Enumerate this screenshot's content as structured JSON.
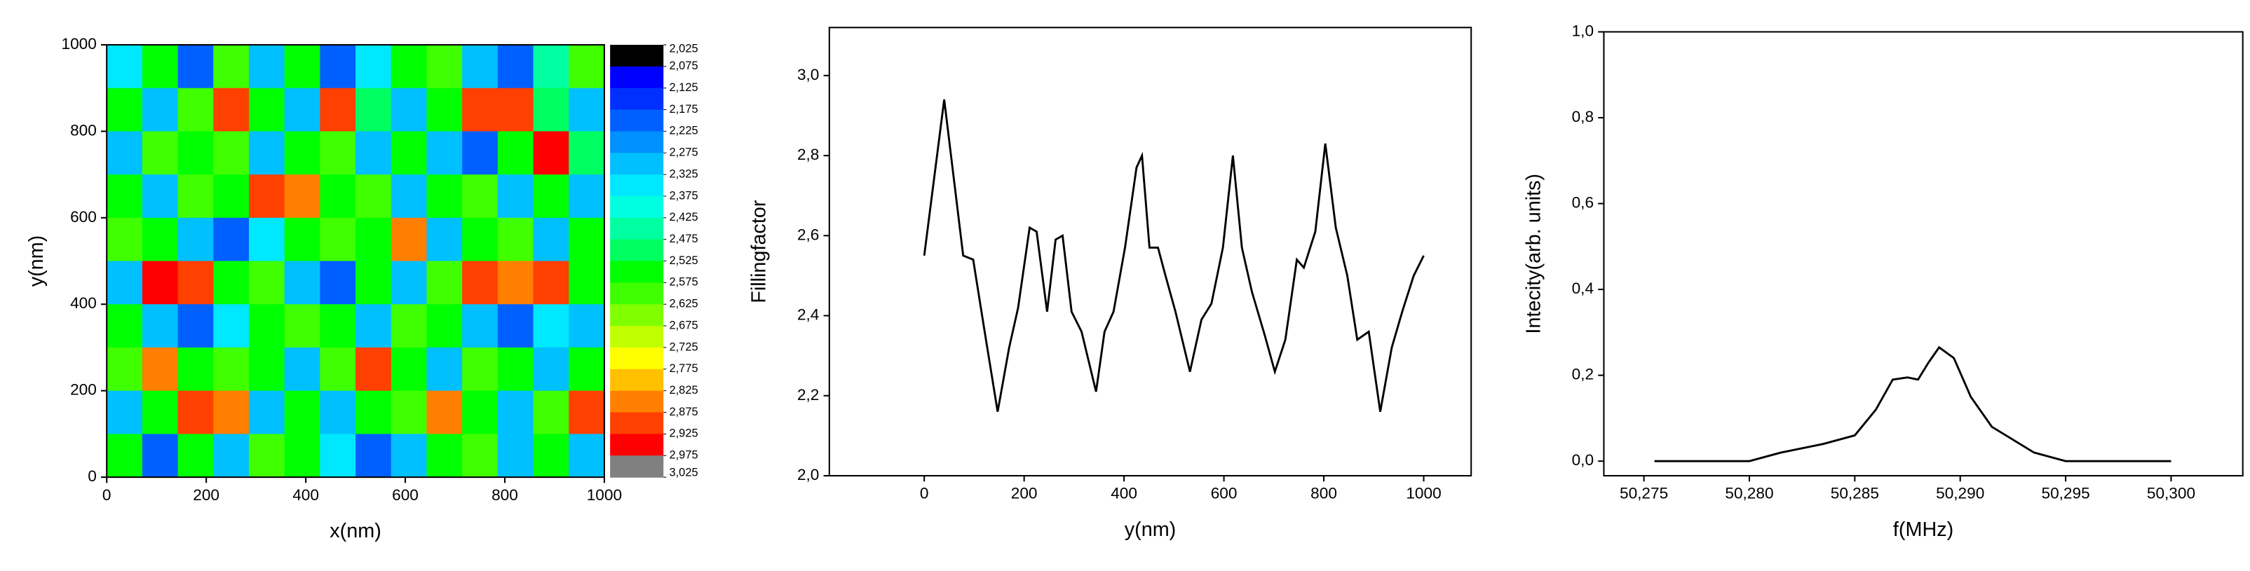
{
  "chart_data": [
    {
      "type": "heatmap",
      "xlabel": "x(nm)",
      "ylabel": "y(nm)",
      "xlim": [
        0,
        1000
      ],
      "xticks": [
        0,
        200,
        400,
        600,
        800,
        1000
      ],
      "ylim": [
        0,
        1000
      ],
      "yticks": [
        0,
        200,
        400,
        600,
        800,
        1000
      ],
      "z": [
        [
          2.35,
          2.55,
          2.2,
          2.6,
          2.3,
          2.55,
          2.2,
          2.35,
          2.55,
          2.6,
          2.3,
          2.2,
          2.45,
          2.6
        ],
        [
          2.55,
          2.3,
          2.6,
          2.9,
          2.55,
          2.3,
          2.9,
          2.5,
          2.3,
          2.55,
          2.9,
          2.9,
          2.5,
          2.3
        ],
        [
          2.3,
          2.6,
          2.55,
          2.6,
          2.3,
          2.55,
          2.6,
          2.3,
          2.55,
          2.3,
          2.2,
          2.55,
          2.95,
          2.5
        ],
        [
          2.55,
          2.3,
          2.6,
          2.55,
          2.9,
          2.85,
          2.55,
          2.6,
          2.3,
          2.55,
          2.6,
          2.3,
          2.55,
          2.3
        ],
        [
          2.6,
          2.55,
          2.3,
          2.2,
          2.35,
          2.55,
          2.6,
          2.55,
          2.85,
          2.3,
          2.55,
          2.6,
          2.3,
          2.55
        ],
        [
          2.3,
          2.95,
          2.9,
          2.55,
          2.6,
          2.3,
          2.2,
          2.55,
          2.3,
          2.6,
          2.9,
          2.85,
          2.9,
          2.55
        ],
        [
          2.55,
          2.3,
          2.2,
          2.35,
          2.55,
          2.6,
          2.55,
          2.3,
          2.6,
          2.55,
          2.3,
          2.2,
          2.35,
          2.3
        ],
        [
          2.6,
          2.85,
          2.55,
          2.6,
          2.55,
          2.3,
          2.6,
          2.9,
          2.55,
          2.3,
          2.6,
          2.55,
          2.3,
          2.55
        ],
        [
          2.3,
          2.55,
          2.9,
          2.85,
          2.3,
          2.55,
          2.3,
          2.55,
          2.6,
          2.85,
          2.55,
          2.3,
          2.6,
          2.9
        ],
        [
          2.55,
          2.2,
          2.55,
          2.3,
          2.6,
          2.55,
          2.35,
          2.2,
          2.3,
          2.55,
          2.6,
          2.3,
          2.55,
          2.3
        ]
      ],
      "colorbar_ticks": [
        {
          "value": 2.025,
          "label": "2,025"
        },
        {
          "value": 2.075,
          "label": "2,075"
        },
        {
          "value": 2.125,
          "label": "2,125"
        },
        {
          "value": 2.175,
          "label": "2,175"
        },
        {
          "value": 2.225,
          "label": "2,225"
        },
        {
          "value": 2.275,
          "label": "2,275"
        },
        {
          "value": 2.325,
          "label": "2,325"
        },
        {
          "value": 2.375,
          "label": "2,375"
        },
        {
          "value": 2.425,
          "label": "2,425"
        },
        {
          "value": 2.475,
          "label": "2,475"
        },
        {
          "value": 2.525,
          "label": "2,525"
        },
        {
          "value": 2.575,
          "label": "2,575"
        },
        {
          "value": 2.625,
          "label": "2,625"
        },
        {
          "value": 2.675,
          "label": "2,675"
        },
        {
          "value": 2.725,
          "label": "2,725"
        },
        {
          "value": 2.775,
          "label": "2,775"
        },
        {
          "value": 2.825,
          "label": "2,825"
        },
        {
          "value": 2.875,
          "label": "2,875"
        },
        {
          "value": 2.925,
          "label": "2,925"
        },
        {
          "value": 2.975,
          "label": "2,975"
        },
        {
          "value": 3.025,
          "label": "3,025"
        }
      ],
      "colors": [
        "#000000",
        "#0000ff",
        "#0030ff",
        "#0060ff",
        "#0090ff",
        "#00c0ff",
        "#00e8ff",
        "#00ffe0",
        "#00ffa0",
        "#00ff60",
        "#00ff00",
        "#40ff00",
        "#80ff00",
        "#c0ff00",
        "#ffff00",
        "#ffc000",
        "#ff8000",
        "#ff4000",
        "#ff0000",
        "#808080"
      ]
    },
    {
      "type": "line",
      "xlabel": "y(nm)",
      "ylabel": "Fillingfactor",
      "color": "#000000",
      "xlim": [
        -190,
        1095
      ],
      "xticks": [
        0,
        200,
        400,
        600,
        800,
        1000
      ],
      "ylim": [
        2.0,
        3.12
      ],
      "yticks": [
        {
          "value": 2.0,
          "label": "2,0"
        },
        {
          "value": 2.2,
          "label": "2,2"
        },
        {
          "value": 2.4,
          "label": "2,4"
        },
        {
          "value": 2.6,
          "label": "2,6"
        },
        {
          "value": 2.8,
          "label": "2,8"
        },
        {
          "value": 3.0,
          "label": "3,0"
        }
      ],
      "x": [
        0,
        40,
        78,
        98,
        121,
        147,
        170,
        188,
        211,
        225,
        246,
        263,
        277,
        295,
        315,
        344,
        361,
        379,
        402,
        425,
        436,
        451,
        468,
        483,
        503,
        532,
        555,
        575,
        598,
        618,
        636,
        656,
        682,
        702,
        723,
        746,
        760,
        783,
        803,
        824,
        847,
        867,
        890,
        913,
        936,
        957,
        980,
        1000
      ],
      "y": [
        2.55,
        2.94,
        2.55,
        2.54,
        2.36,
        2.16,
        2.32,
        2.42,
        2.62,
        2.61,
        2.41,
        2.59,
        2.6,
        2.41,
        2.36,
        2.21,
        2.36,
        2.41,
        2.57,
        2.77,
        2.8,
        2.57,
        2.57,
        2.5,
        2.41,
        2.26,
        2.39,
        2.43,
        2.57,
        2.8,
        2.57,
        2.46,
        2.35,
        2.26,
        2.34,
        2.54,
        2.52,
        2.61,
        2.83,
        2.62,
        2.5,
        2.34,
        2.36,
        2.16,
        2.32,
        2.41,
        2.5,
        2.55
      ]
    },
    {
      "type": "line",
      "xlabel": "f(MHz)",
      "ylabel": "Intecity(arb. units)",
      "color": "#000000",
      "xlim": [
        50.2731,
        50.3034
      ],
      "xticks": [
        {
          "value": 50.275,
          "label": "50,275"
        },
        {
          "value": 50.28,
          "label": "50,280"
        },
        {
          "value": 50.285,
          "label": "50,285"
        },
        {
          "value": 50.29,
          "label": "50,290"
        },
        {
          "value": 50.295,
          "label": "50,295"
        },
        {
          "value": 50.3,
          "label": "50,300"
        }
      ],
      "ylim": [
        -0.034,
        1.0
      ],
      "yticks": [
        {
          "value": 0.0,
          "label": "0,0"
        },
        {
          "value": 0.2,
          "label": "0,2"
        },
        {
          "value": 0.4,
          "label": "0,4"
        },
        {
          "value": 0.6,
          "label": "0,6"
        },
        {
          "value": 0.8,
          "label": "0,8"
        },
        {
          "value": 1.0,
          "label": "1,0"
        }
      ],
      "x": [
        50.2755,
        50.28,
        50.2815,
        50.2835,
        50.285,
        50.286,
        50.2868,
        50.2875,
        50.288,
        50.2885,
        50.289,
        50.2897,
        50.2905,
        50.2915,
        50.2925,
        50.2935,
        50.295,
        50.3
      ],
      "y": [
        0,
        0,
        0.02,
        0.04,
        0.06,
        0.12,
        0.19,
        0.195,
        0.19,
        0.23,
        0.265,
        0.24,
        0.15,
        0.08,
        0.05,
        0.02,
        0,
        0
      ]
    }
  ]
}
